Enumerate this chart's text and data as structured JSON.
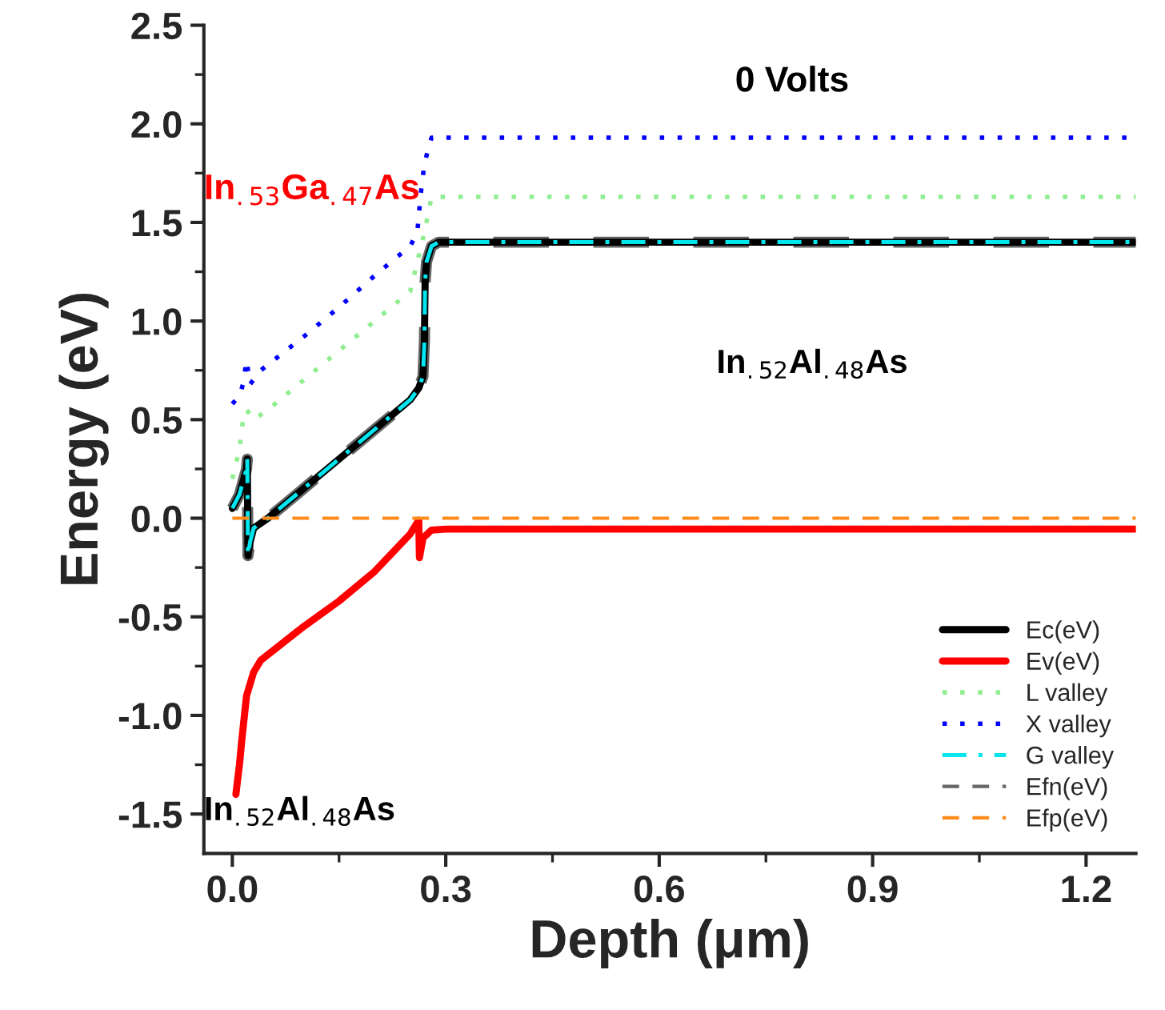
{
  "chart_data": {
    "type": "line",
    "xlabel": "Depth (μm)",
    "ylabel": "Energy (eV)",
    "xlim": [
      -0.04,
      1.27
    ],
    "ylim": [
      -1.7,
      2.5
    ],
    "xticks": [
      {
        "value": 0,
        "label": "0.0"
      },
      0.3,
      0.6,
      0.9,
      1.2
    ],
    "yticks": [
      {
        "value": -1.5,
        "label": "-1.5"
      },
      {
        "value": -1,
        "label": "-1.0"
      },
      {
        "value": -0.5,
        "label": "-0.5"
      },
      {
        "value": 0,
        "label": "0.0"
      },
      0.5,
      {
        "value": 1,
        "label": "1.0"
      },
      1.5,
      {
        "value": 2,
        "label": "2.0"
      },
      2.5
    ],
    "grid": false,
    "legend": "bottom right",
    "marker": "none",
    "annotations": [
      "0 Volts",
      "In$_{.53}$Ga$_{.47}$As",
      "In$_{.52}$Al$_{.48}$As",
      "In$_{.52}$Al$_{.48}$As"
    ],
    "series": [
      {
        "name": "Efn(eV)",
        "color": "#666666",
        "line_style": "dashed",
        "x": [
          0.0,
          0.01,
          0.02,
          0.021,
          0.022,
          0.025,
          0.03,
          0.05,
          0.1,
          0.15,
          0.2,
          0.25,
          0.262,
          0.268,
          0.27,
          0.271,
          0.273,
          0.28,
          0.29,
          1.27
        ],
        "values": [
          0.05,
          0.12,
          0.25,
          0.3,
          -0.19,
          -0.12,
          -0.05,
          0.0,
          0.15,
          0.3,
          0.45,
          0.6,
          0.66,
          0.72,
          0.9,
          1.2,
          1.3,
          1.38,
          1.4,
          1.4
        ]
      },
      {
        "name": "Ec(eV)",
        "color": "#000000",
        "line_style": "solid",
        "x": [
          0.0,
          0.01,
          0.02,
          0.021,
          0.022,
          0.025,
          0.03,
          0.05,
          0.1,
          0.15,
          0.2,
          0.25,
          0.262,
          0.268,
          0.27,
          0.271,
          0.273,
          0.28,
          0.29,
          1.27
        ],
        "values": [
          0.05,
          0.12,
          0.25,
          0.3,
          -0.19,
          -0.12,
          -0.05,
          0.0,
          0.15,
          0.3,
          0.45,
          0.6,
          0.66,
          0.72,
          0.9,
          1.2,
          1.3,
          1.38,
          1.4,
          1.4
        ]
      },
      {
        "name": "Ev(eV)",
        "color": "#ff0000",
        "line_style": "solid",
        "x": [
          0.005,
          0.01,
          0.014,
          0.017,
          0.02,
          0.03,
          0.04,
          0.1,
          0.15,
          0.2,
          0.25,
          0.262,
          0.263,
          0.268,
          0.28,
          0.3,
          1.27
        ],
        "values": [
          -1.4,
          -1.25,
          -1.1,
          -1.0,
          -0.9,
          -0.78,
          -0.72,
          -0.55,
          -0.42,
          -0.27,
          -0.08,
          -0.01,
          -0.2,
          -0.1,
          -0.06,
          -0.055,
          -0.055
        ]
      },
      {
        "name": "L valley",
        "color": "#90ee90",
        "line_style": "dotted",
        "x": [
          0.0,
          0.01,
          0.015,
          0.02,
          0.03,
          0.05,
          0.1,
          0.15,
          0.2,
          0.25,
          0.26,
          0.27,
          0.28,
          1.27
        ],
        "values": [
          0.2,
          0.35,
          0.5,
          0.55,
          0.5,
          0.55,
          0.7,
          0.85,
          1.0,
          1.15,
          1.3,
          1.45,
          1.63,
          1.63
        ]
      },
      {
        "name": "X valley",
        "color": "#0000ff",
        "line_style": "dotted",
        "x": [
          0.0,
          0.01,
          0.015,
          0.02,
          0.025,
          0.04,
          0.1,
          0.15,
          0.2,
          0.25,
          0.26,
          0.265,
          0.27,
          0.28,
          1.27
        ],
        "values": [
          0.58,
          0.62,
          0.68,
          0.8,
          0.68,
          0.75,
          0.92,
          1.07,
          1.23,
          1.38,
          1.45,
          1.65,
          1.8,
          1.93,
          1.93
        ]
      },
      {
        "name": "G valley",
        "color": "#00e5ee",
        "line_style": "dashdot",
        "x": [
          0.0,
          0.01,
          0.02,
          0.021,
          0.022,
          0.025,
          0.03,
          0.05,
          0.1,
          0.15,
          0.2,
          0.25,
          0.262,
          0.268,
          0.27,
          0.271,
          0.273,
          0.28,
          0.29,
          1.27
        ],
        "values": [
          0.05,
          0.12,
          0.25,
          0.3,
          -0.19,
          -0.12,
          -0.05,
          0.0,
          0.15,
          0.3,
          0.45,
          0.6,
          0.66,
          0.72,
          0.9,
          1.2,
          1.3,
          1.38,
          1.4,
          1.4
        ]
      },
      {
        "name": "Efp(eV)",
        "color": "#ff8c1a",
        "line_style": "dashed",
        "x": [
          0.0,
          1.27
        ],
        "values": [
          0.0,
          0.0
        ]
      }
    ]
  }
}
